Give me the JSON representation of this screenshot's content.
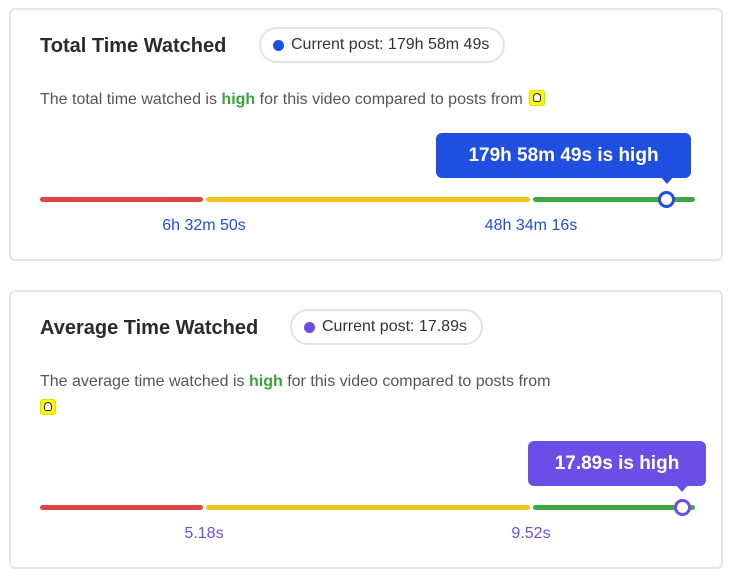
{
  "colors": {
    "blue": "#1f4fe0",
    "purple": "#6a4fe6",
    "red": "#e04545",
    "yellow": "#f7c21c",
    "green": "#3fa846",
    "high": "#3aa43a"
  },
  "total_time": {
    "title": "Total Time Watched",
    "pill_label": "Current post: 179h 58m 49s",
    "desc_before": "The total time watched is ",
    "desc_highlight": "high",
    "desc_after": " for this video compared to posts from",
    "platform_icon": "snapchat-icon",
    "tooltip": "179h 58m 49s is high",
    "tick_low": "6h 32m 50s",
    "tick_high": "48h 34m 16s",
    "level": "high"
  },
  "avg_time": {
    "title": "Average Time Watched",
    "pill_label": "Current post: 17.89s",
    "desc_before": "The average time watched is ",
    "desc_highlight": "high",
    "desc_after": " for this video compared to posts from",
    "platform_icon": "snapchat-icon",
    "tooltip": "17.89s is high",
    "tick_low": "5.18s",
    "tick_high": "9.52s",
    "level": "high"
  }
}
